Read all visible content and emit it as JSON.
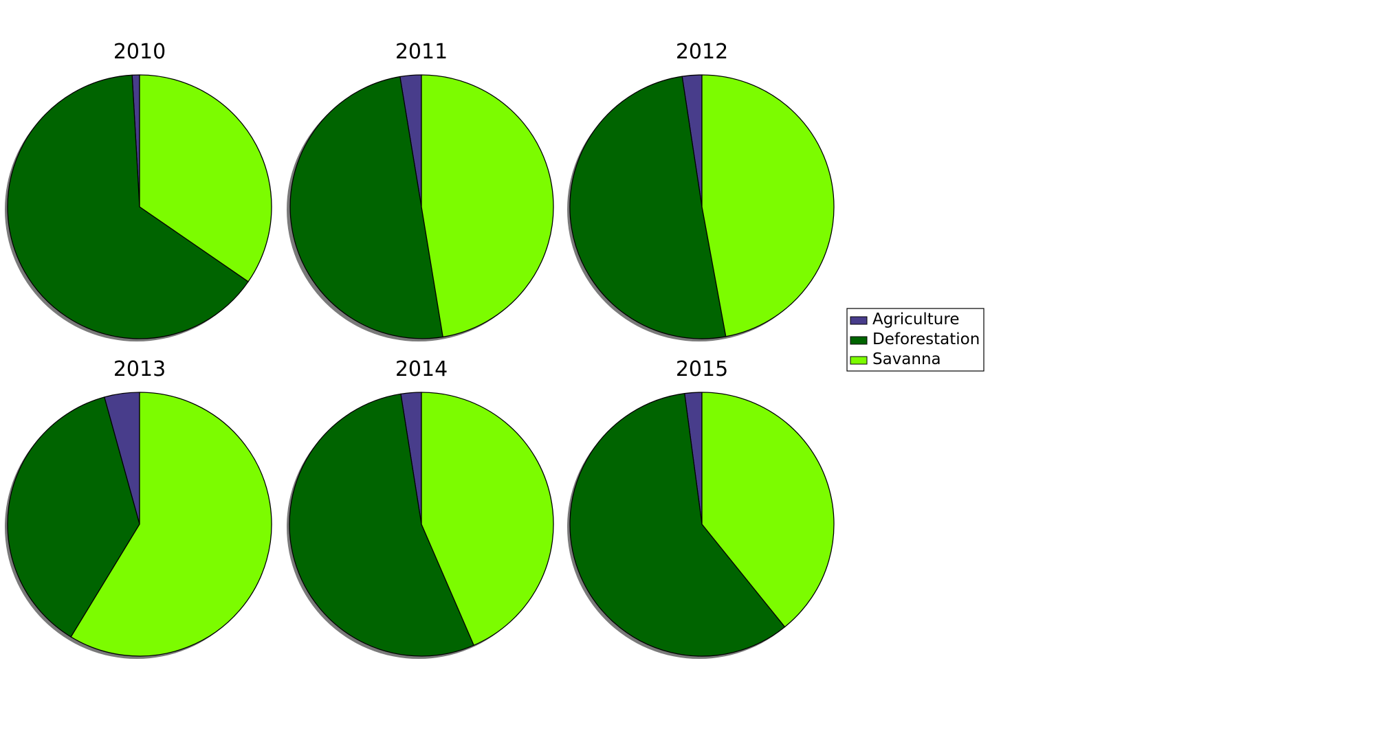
{
  "chart_data": [
    {
      "type": "pie",
      "title": "2010",
      "labels": [
        "Agriculture",
        "Deforestation",
        "Savanna"
      ],
      "values": [
        0.9,
        64.5,
        34.6
      ],
      "startangle": 90,
      "direction": "counterclockwise",
      "shadow": true
    },
    {
      "type": "pie",
      "title": "2011",
      "labels": [
        "Agriculture",
        "Deforestation",
        "Savanna"
      ],
      "values": [
        2.6,
        50.0,
        47.4
      ],
      "startangle": 90,
      "direction": "counterclockwise",
      "shadow": true
    },
    {
      "type": "pie",
      "title": "2012",
      "labels": [
        "Agriculture",
        "Deforestation",
        "Savanna"
      ],
      "values": [
        2.4,
        50.5,
        47.1
      ],
      "startangle": 90,
      "direction": "counterclockwise",
      "shadow": true
    },
    {
      "type": "pie",
      "title": "2013",
      "labels": [
        "Agriculture",
        "Deforestation",
        "Savanna"
      ],
      "values": [
        4.3,
        37.0,
        58.7
      ],
      "startangle": 90,
      "direction": "counterclockwise",
      "shadow": true
    },
    {
      "type": "pie",
      "title": "2014",
      "labels": [
        "Agriculture",
        "Deforestation",
        "Savanna"
      ],
      "values": [
        2.5,
        54.0,
        43.5
      ],
      "startangle": 90,
      "direction": "counterclockwise",
      "shadow": true
    },
    {
      "type": "pie",
      "title": "2015",
      "labels": [
        "Agriculture",
        "Deforestation",
        "Savanna"
      ],
      "values": [
        2.1,
        58.7,
        39.2
      ],
      "startangle": 90,
      "direction": "counterclockwise",
      "shadow": true
    }
  ],
  "legend": {
    "placement": "right",
    "entries": [
      {
        "label": "Agriculture",
        "color": "#483D8B"
      },
      {
        "label": "Deforestation",
        "color": "#006400"
      },
      {
        "label": "Savanna",
        "color": "#7CFC00"
      }
    ]
  }
}
